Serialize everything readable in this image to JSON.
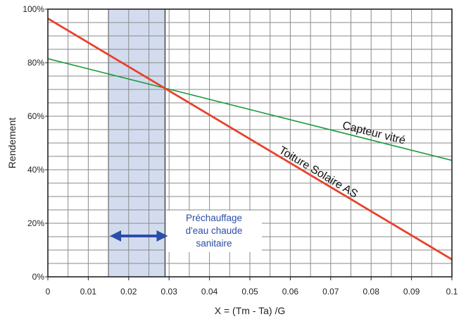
{
  "chart_data": {
    "type": "line",
    "title": "",
    "xlabel": "X = (Tm - Ta) /G",
    "ylabel": "Rendement",
    "xlim": [
      0,
      0.1
    ],
    "ylim": [
      0,
      100
    ],
    "x_ticks": [
      "0",
      "0.01",
      "0.02",
      "0.03",
      "0.04",
      "0.05",
      "0.06",
      "0.07",
      "0.08",
      "0.09",
      "0.1"
    ],
    "y_ticks": [
      "0%",
      "20%",
      "40%",
      "60%",
      "80%",
      "100%"
    ],
    "grid": true,
    "series": [
      {
        "name": "Capteur vitré",
        "color": "#1a9a3c",
        "x": [
          0,
          0.1
        ],
        "y": [
          81.5,
          43.5
        ]
      },
      {
        "name": "Toiture Solaire AS",
        "color": "#e8412c",
        "x": [
          0,
          0.1
        ],
        "y": [
          96.5,
          6.5
        ]
      }
    ],
    "shaded_band": {
      "x_range": [
        0.015,
        0.029
      ],
      "color": "#d3dcef",
      "label_lines": [
        "Préchauffage",
        "d'eau chaude",
        "sanitaire"
      ],
      "label_color": "#2b4ea8",
      "arrow_color": "#2b4ea8"
    }
  }
}
